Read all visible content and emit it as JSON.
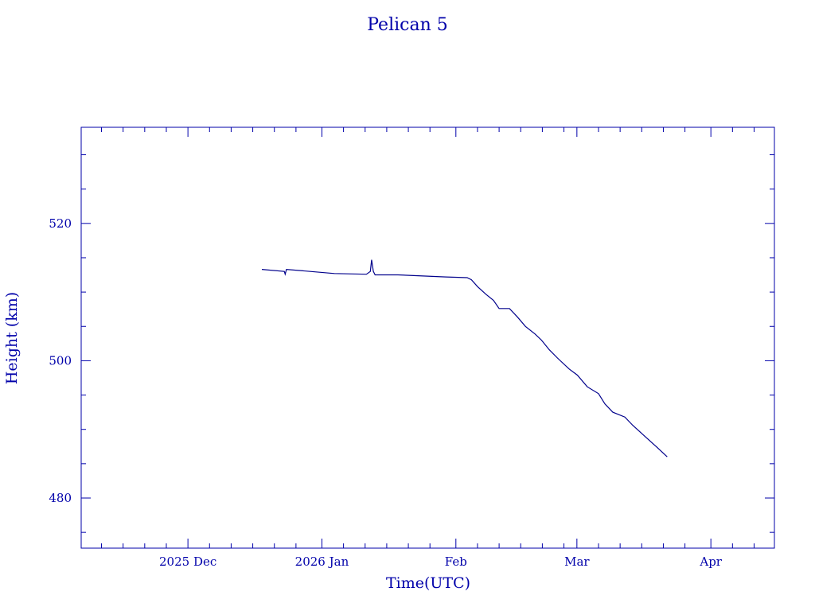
{
  "chart_data": {
    "type": "line",
    "title": "Pelican 5",
    "xlabel": "Time(UTC)",
    "ylabel": "Height (km)",
    "x_units": "days since 2025-12-01 (UTC)",
    "xlim": [
      -24.7,
      135.7
    ],
    "ylim": [
      472.7,
      534.0
    ],
    "grid": false,
    "x_ticks": [
      {
        "value": 0,
        "label": "2025 Dec"
      },
      {
        "value": 31,
        "label": "2026 Jan"
      },
      {
        "value": 62,
        "label": "Feb"
      },
      {
        "value": 90,
        "label": "Mar"
      },
      {
        "value": 121,
        "label": "Apr"
      }
    ],
    "x_minor_step_days": 5,
    "y_ticks": [
      480,
      500,
      520
    ],
    "y_minor_step": 5,
    "color": "#0000aa",
    "line_color": "#00008b",
    "series": [
      {
        "name": "Height",
        "x": [
          17.1,
          22.3,
          22.5,
          22.8,
          33.9,
          41.3,
          42.2,
          42.5,
          42.9,
          43.3,
          48.6,
          59.7,
          64.6,
          65.6,
          67.0,
          68.9,
          70.7,
          72.0,
          74.4,
          76.2,
          78.1,
          80.3,
          81.8,
          83.6,
          85.5,
          88.2,
          90.1,
          92.4,
          95.0,
          96.5,
          98.3,
          101.1,
          102.9,
          105.7,
          108.5,
          110.9
        ],
        "y": [
          513.3,
          513.0,
          512.6,
          513.3,
          512.7,
          512.6,
          513.0,
          514.7,
          513.0,
          512.5,
          512.5,
          512.2,
          512.1,
          511.8,
          510.8,
          509.7,
          508.8,
          507.6,
          507.6,
          506.4,
          505.0,
          503.9,
          503.0,
          501.6,
          500.4,
          498.8,
          497.9,
          496.2,
          495.2,
          493.7,
          492.5,
          491.8,
          490.6,
          489.0,
          487.4,
          486.0
        ]
      }
    ]
  }
}
